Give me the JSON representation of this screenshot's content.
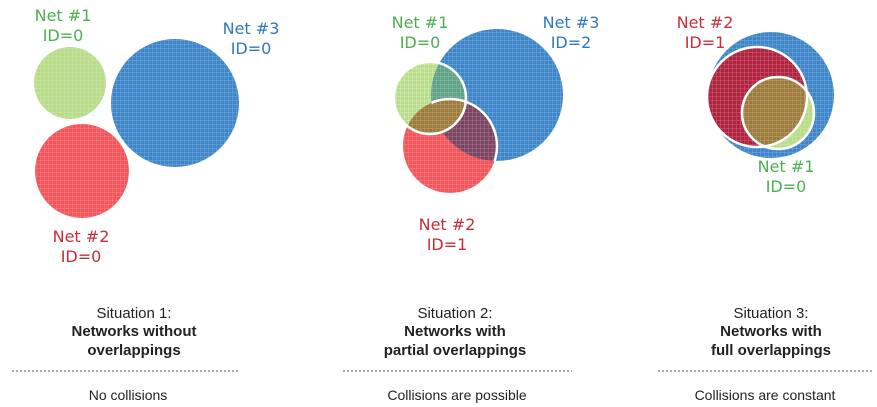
{
  "colors": {
    "green": "#b9dc8a",
    "blue": "#3f86c8",
    "red": "#f2555a",
    "dark_red": "#b0243f",
    "olive": "#9c7b3c",
    "teal": "#5fa288",
    "purple": "#7a4462",
    "green_text": "#4caf50",
    "blue_text": "#2f78c4",
    "red_text": "#c62f3a"
  },
  "situation1": {
    "net1": {
      "name": "Net #1",
      "id": "ID=0"
    },
    "net2": {
      "name": "Net #2",
      "id": "ID=0"
    },
    "net3": {
      "name": "Net #3",
      "id": "ID=0"
    },
    "caption": {
      "title": "Situation 1:",
      "bold_line1": "Networks without",
      "bold_line2": "overlappings",
      "note": "No collisions"
    }
  },
  "situation2": {
    "net1": {
      "name": "Net #1",
      "id": "ID=0"
    },
    "net2": {
      "name": "Net #2",
      "id": "ID=1"
    },
    "net3": {
      "name": "Net #3",
      "id": "ID=2"
    },
    "caption": {
      "title": "Situation 2:",
      "bold_line1": "Networks with",
      "bold_line2": "partial overlappings",
      "note": "Collisions are possible"
    }
  },
  "situation3": {
    "net1": {
      "name": "Net #1",
      "id": "ID=0"
    },
    "net2": {
      "name": "Net #2",
      "id": "ID=1"
    },
    "caption": {
      "title": "Situation 3:",
      "bold_line1": "Networks with",
      "bold_line2": "full overlappings",
      "note": "Collisions are constant"
    }
  }
}
